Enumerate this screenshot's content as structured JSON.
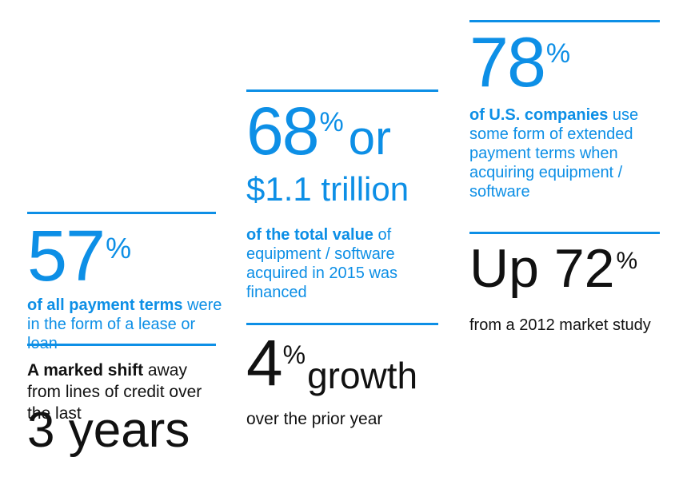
{
  "colors": {
    "accent": "#0d8fe6",
    "text": "#111111"
  },
  "stats": {
    "s57": {
      "number": "57",
      "pct": "%",
      "bold": "of all payment terms",
      "rest": " were in the form of a lease or loan"
    },
    "shift": {
      "bold": "A marked shift",
      "rest": " away from lines of credit over the last",
      "big": "3 years"
    },
    "s68": {
      "number": "68",
      "pct": "%",
      "or": "or",
      "amount": "$1.1 trillion",
      "bold": "of the total value",
      "rest": " of equipment / software acquired in 2015 was financed"
    },
    "s4": {
      "number": "4",
      "pct": "%",
      "word": "growth",
      "caption": "over the prior year"
    },
    "s78": {
      "number": "78",
      "pct": "%",
      "bold": "of U.S. companies",
      "rest": " use some form of extended payment terms when acquiring equipment / software"
    },
    "s72": {
      "number": "Up 72",
      "pct": "%",
      "caption": "from a 2012 market study"
    }
  }
}
